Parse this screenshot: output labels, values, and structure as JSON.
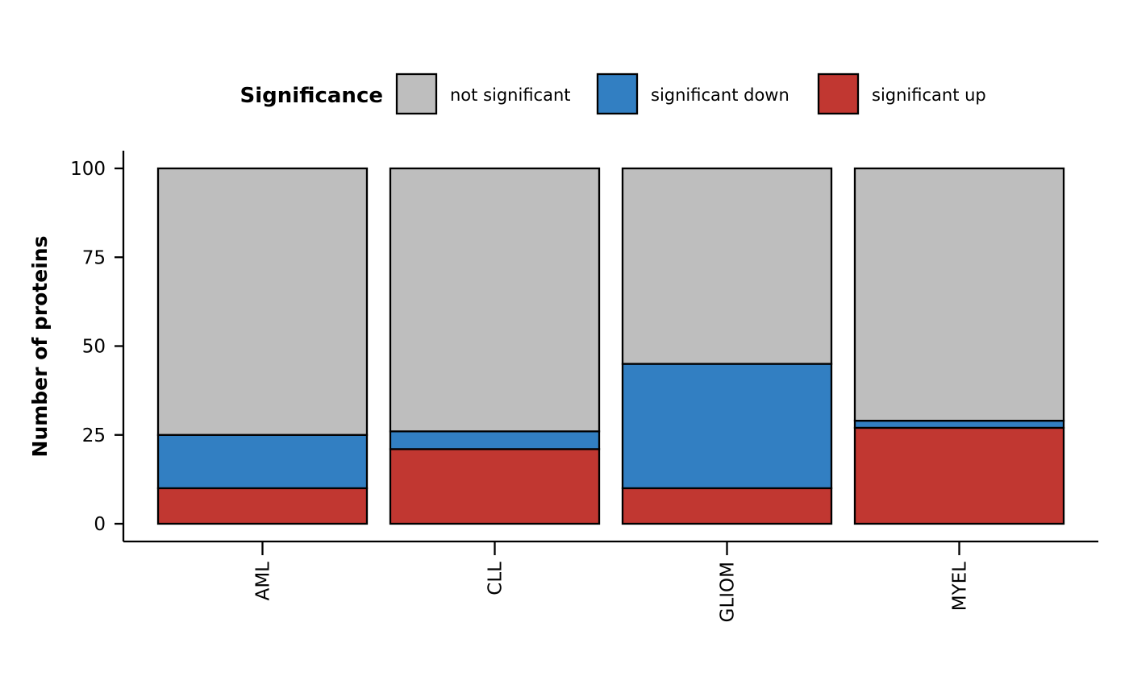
{
  "chart_data": {
    "type": "bar",
    "stacked": true,
    "categories": [
      "AML",
      "CLL",
      "GLIOM",
      "MYEL"
    ],
    "series": [
      {
        "name": "significant up",
        "color": "#c13731",
        "values": [
          10,
          21,
          10,
          27
        ]
      },
      {
        "name": "significant down",
        "color": "#327fc2",
        "values": [
          15,
          5,
          35,
          2
        ]
      },
      {
        "name": "not significant",
        "color": "#bebebe",
        "values": [
          75,
          74,
          55,
          71
        ]
      }
    ],
    "legend": {
      "title": "Significance",
      "placement": "top",
      "order": [
        "not significant",
        "significant down",
        "significant up"
      ]
    },
    "xlabel": "",
    "ylabel": "Number of proteins",
    "ylim": [
      0,
      100
    ],
    "yticks": [
      0,
      25,
      50,
      75,
      100
    ],
    "grid": false,
    "x_tick_rotation": "vertical"
  }
}
